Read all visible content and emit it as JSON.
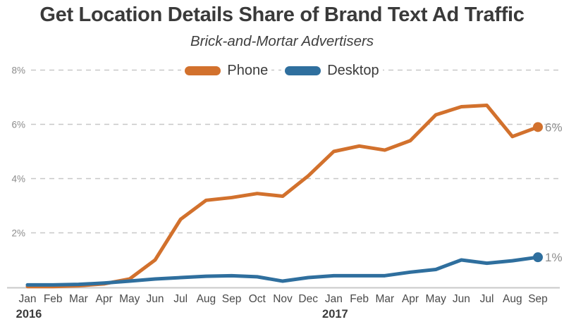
{
  "header": {
    "title": "Get Location Details Share of Brand Text Ad Traffic",
    "subtitle": "Brick-and-Mortar Advertisers"
  },
  "legend": {
    "items": [
      {
        "label": "Phone",
        "color": "#d2712d"
      },
      {
        "label": "Desktop",
        "color": "#2f6f9e"
      }
    ]
  },
  "chart_data": {
    "type": "line",
    "title": "Get Location Details Share of Brand Text Ad Traffic",
    "subtitle": "Brick-and-Mortar Advertisers",
    "x": [
      "Jan",
      "Feb",
      "Mar",
      "Apr",
      "May",
      "Jun",
      "Jul",
      "Aug",
      "Sep",
      "Oct",
      "Nov",
      "Dec",
      "Jan",
      "Feb",
      "Mar",
      "Apr",
      "May",
      "Jun",
      "Jul",
      "Aug",
      "Sep"
    ],
    "x_years": [
      {
        "label": "2016",
        "month_index": 0
      },
      {
        "label": "2017",
        "month_index": 12
      }
    ],
    "series": [
      {
        "name": "Phone",
        "color": "#d2712d",
        "values": [
          0.02,
          0.02,
          0.05,
          0.12,
          0.3,
          1.0,
          2.5,
          3.2,
          3.3,
          3.45,
          3.35,
          4.1,
          5.0,
          5.2,
          5.05,
          5.4,
          6.35,
          6.65,
          6.7,
          5.55,
          5.9
        ],
        "end_label": "6%"
      },
      {
        "name": "Desktop",
        "color": "#2f6f9e",
        "values": [
          0.08,
          0.08,
          0.1,
          0.15,
          0.22,
          0.3,
          0.35,
          0.4,
          0.42,
          0.38,
          0.22,
          0.35,
          0.42,
          0.42,
          0.42,
          0.55,
          0.65,
          1.0,
          0.88,
          0.97,
          1.1
        ],
        "end_label": "1%"
      }
    ],
    "y_ticks": [
      {
        "value": 2,
        "label": "2%"
      },
      {
        "value": 4,
        "label": "4%"
      },
      {
        "value": 6,
        "label": "6%"
      },
      {
        "value": 8,
        "label": "8%"
      }
    ],
    "ylim": [
      0,
      8
    ],
    "grid": "horizontal-dashed",
    "legend_position": "top-center"
  },
  "colors": {
    "phone": "#d2712d",
    "desktop": "#2f6f9e",
    "gridline": "#c8c8c8",
    "axis_label": "#8c8c8c",
    "text": "#3a3a3a"
  }
}
